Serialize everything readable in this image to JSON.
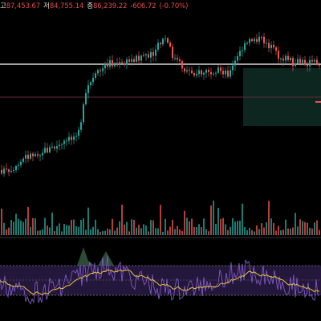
{
  "header": {
    "high_label": "고",
    "high_value": "87,453.67",
    "low_label": "저",
    "low_value": "84,755.14",
    "close_label": "종",
    "close_value": "86,239.22",
    "change_value": "-606.72",
    "change_pct": "(-0.70%)"
  },
  "colors": {
    "up": "#26a69a",
    "down": "#ef5350",
    "rsi_line": "#7e57c2",
    "rsi_ma": "#e6c23a",
    "price_line": "#ffffff",
    "band_fill": "#2a1b46",
    "zone_fill": "#0f2a24"
  },
  "icons": {
    "cursor": "cursor-icon"
  }
}
